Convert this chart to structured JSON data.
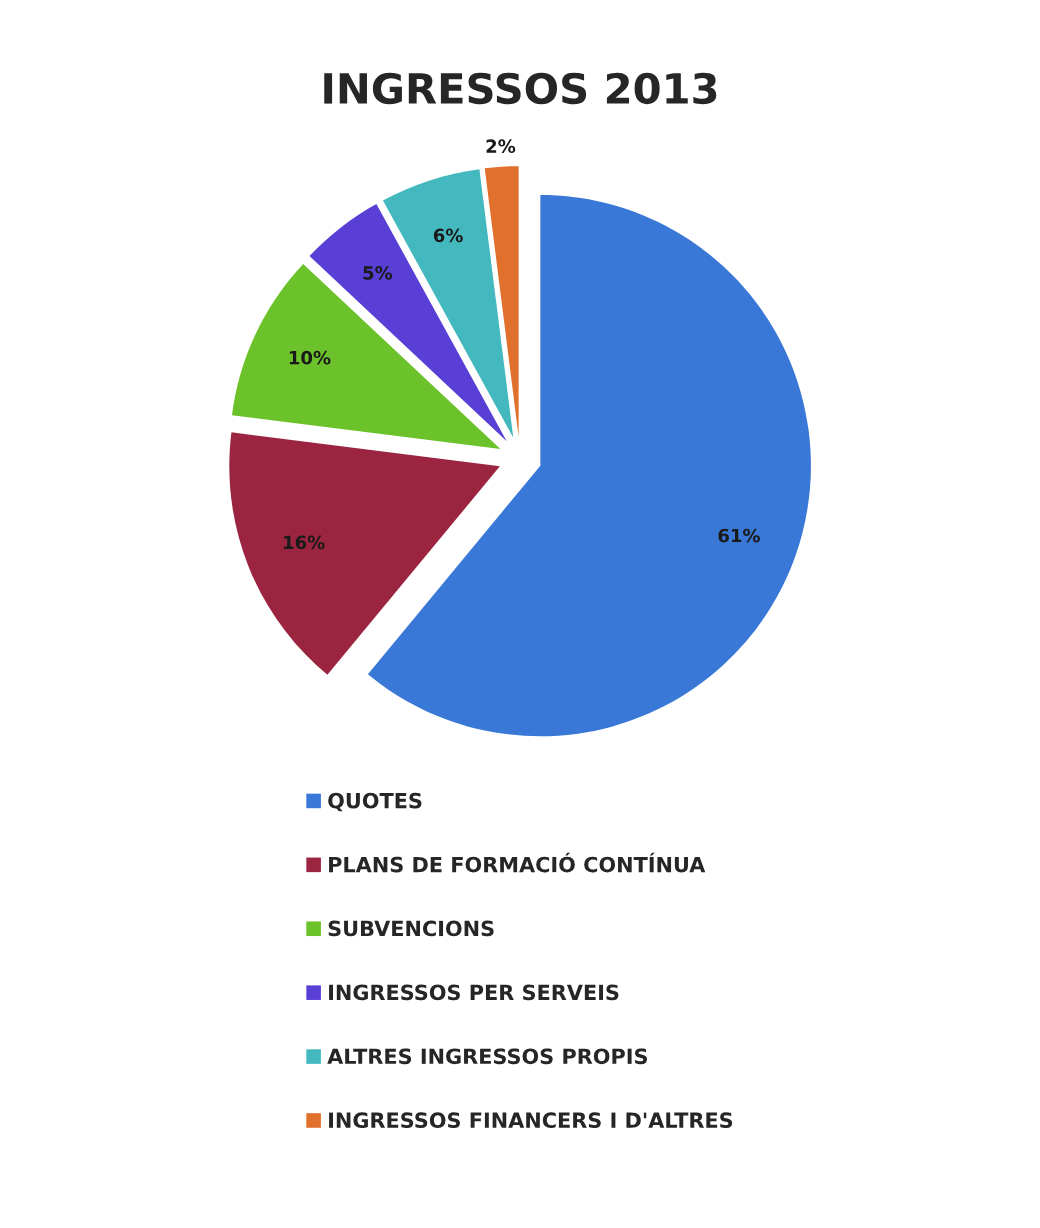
{
  "chart_data": {
    "type": "pie",
    "title": "INGRESSOS 2013",
    "categories": [
      "QUOTES",
      "PLANS DE FORMACIÓ CONTÍNUA",
      "SUBVENCIONS",
      "INGRESSOS PER SERVEIS",
      "ALTRES INGRESSOS PROPIS",
      "INGRESSOS FINANCERS I D'ALTRES"
    ],
    "values": [
      61,
      16,
      10,
      5,
      6,
      2
    ],
    "colors": [
      "#3a78d8",
      "#9b2540",
      "#6cc22a",
      "#5a3fd6",
      "#43b9bf",
      "#e0702c"
    ],
    "value_labels": [
      "61%",
      "16%",
      "10%",
      "5%",
      "6%",
      "2%"
    ],
    "legend": "bottom"
  }
}
